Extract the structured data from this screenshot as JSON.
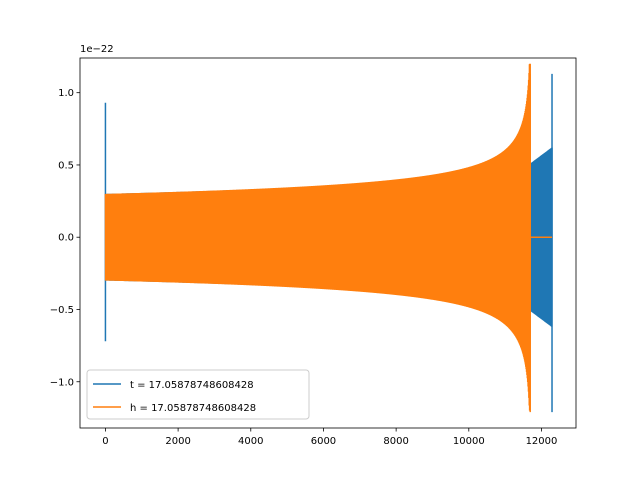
{
  "chart_data": {
    "type": "line",
    "title": "",
    "xlabel": "",
    "ylabel": "",
    "offset_text": "1e−22",
    "xlim": [
      -700,
      12950
    ],
    "ylim": [
      -1.32,
      1.24
    ],
    "y_scale_exponent": -22,
    "xticks": [
      0,
      2000,
      4000,
      6000,
      8000,
      10000,
      12000
    ],
    "xtick_labels": [
      "0",
      "2000",
      "4000",
      "6000",
      "8000",
      "10000",
      "12000"
    ],
    "yticks": [
      -1.0,
      -0.5,
      0.0,
      0.5,
      1.0
    ],
    "ytick_labels": [
      "−1.0",
      "−0.5",
      "0.0",
      "0.5",
      "1.0"
    ],
    "grid": false,
    "legend_position": "lower-left",
    "series": [
      {
        "name": "t = 17.05878748608428",
        "color": "#1f77b4",
        "envelope": {
          "start_x": 0,
          "start_amplitude": 0.3,
          "chirp_end_x": 11650,
          "chirp_end_amplitude": 0.5,
          "ringdown_end_x": 12290,
          "ringdown_end_amplitude": 0.62,
          "start_spike_max": 0.93,
          "start_spike_min": -0.72,
          "merger_peak_max": 1.13,
          "merger_peak_min": -1.21,
          "merger_x": 12290
        }
      },
      {
        "name": "h = 17.05878748608428",
        "color": "#ff7f0e",
        "envelope": {
          "start_x": 0,
          "start_amplitude": 0.3,
          "merger_x": 11690,
          "merger_peak_max": 1.13,
          "merger_peak_min": -1.21,
          "after_merger_value": 0.0,
          "after_merger_end_x": 12290
        }
      }
    ]
  }
}
